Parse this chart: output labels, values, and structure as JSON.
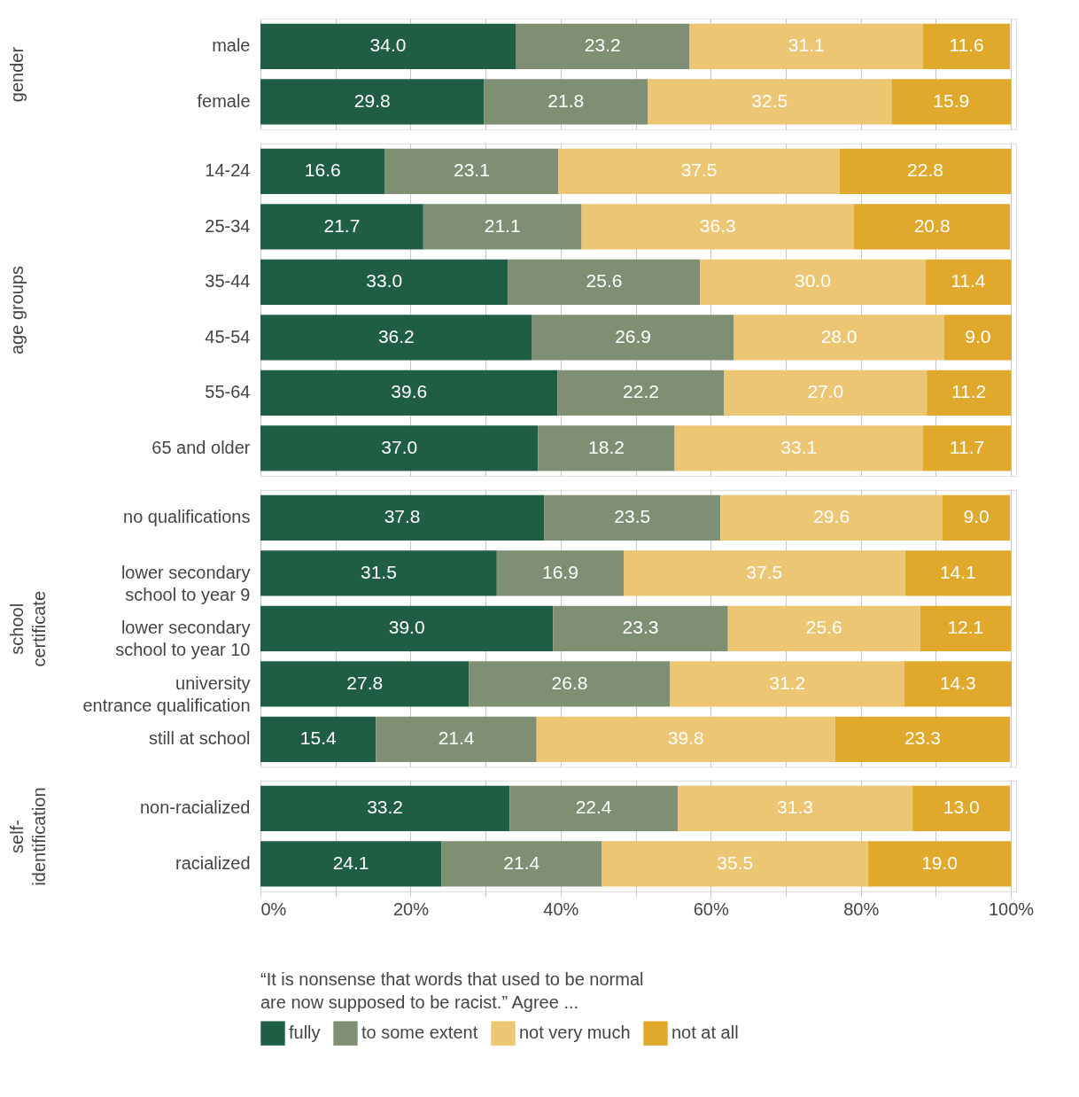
{
  "chart_data": [
    {
      "type": "bar",
      "orientation": "horizontal",
      "stacked": true,
      "ylabel": "gender",
      "categories": [
        "male",
        "female"
      ],
      "series": [
        {
          "color": "#1f5e45",
          "values": [
            34.0,
            29.8
          ],
          "value_labels": [
            "34.0",
            "29.8"
          ]
        },
        {
          "color": "#7f8f74",
          "values": [
            23.2,
            21.8
          ],
          "value_labels": [
            "23.2",
            "21.8"
          ]
        },
        {
          "color": "#ecc672",
          "values": [
            31.1,
            32.5
          ],
          "value_labels": [
            "31.1",
            "32.5"
          ]
        },
        {
          "color": "#e0a92c",
          "values": [
            11.6,
            15.9
          ],
          "value_labels": [
            "11.6",
            "15.9"
          ]
        }
      ],
      "xlim": [
        0,
        100.7
      ],
      "xticks": [
        {
          "value": 0,
          "label": null
        },
        {
          "value": 10,
          "label": null
        },
        {
          "value": 20,
          "label": null
        },
        {
          "value": 30,
          "label": null
        },
        {
          "value": 40,
          "label": null
        },
        {
          "value": 50,
          "label": null
        },
        {
          "value": 60,
          "label": null
        },
        {
          "value": 70,
          "label": null
        },
        {
          "value": 80,
          "label": null
        },
        {
          "value": 90,
          "label": null
        },
        {
          "value": 100,
          "label": null
        }
      ],
      "grid": "x",
      "tick_labels": "y"
    },
    {
      "type": "bar",
      "orientation": "horizontal",
      "stacked": true,
      "ylabel": "age groups",
      "categories": [
        "14-24",
        "25-34",
        "35-44",
        "45-54",
        "55-64",
        "65 and older"
      ],
      "series": [
        {
          "color": "#1f5e45",
          "values": [
            16.6,
            21.7,
            33.0,
            36.2,
            39.6,
            37.0
          ],
          "value_labels": [
            "16.6",
            "21.7",
            "33.0",
            "36.2",
            "39.6",
            "37.0"
          ]
        },
        {
          "color": "#7f8f74",
          "values": [
            23.1,
            21.1,
            25.6,
            26.9,
            22.2,
            18.2
          ],
          "value_labels": [
            "23.1",
            "21.1",
            "25.6",
            "26.9",
            "22.2",
            "18.2"
          ]
        },
        {
          "color": "#ecc672",
          "values": [
            37.5,
            36.3,
            30.0,
            28.0,
            27.0,
            33.1
          ],
          "value_labels": [
            "37.5",
            "36.3",
            "30.0",
            "28.0",
            "27.0",
            "33.1"
          ]
        },
        {
          "color": "#e0a92c",
          "values": [
            22.8,
            20.8,
            11.4,
            9.0,
            11.2,
            11.7
          ],
          "value_labels": [
            "22.8",
            "20.8",
            "11.4",
            "9.0",
            "11.2",
            "11.7"
          ]
        }
      ],
      "xlim": [
        0,
        100.7
      ],
      "xticks": [
        {
          "value": 0,
          "label": null
        },
        {
          "value": 10,
          "label": null
        },
        {
          "value": 20,
          "label": null
        },
        {
          "value": 30,
          "label": null
        },
        {
          "value": 40,
          "label": null
        },
        {
          "value": 50,
          "label": null
        },
        {
          "value": 60,
          "label": null
        },
        {
          "value": 70,
          "label": null
        },
        {
          "value": 80,
          "label": null
        },
        {
          "value": 90,
          "label": null
        },
        {
          "value": 100,
          "label": null
        }
      ],
      "grid": "x",
      "tick_labels": "y"
    },
    {
      "type": "bar",
      "orientation": "horizontal",
      "stacked": true,
      "ylabel": "school certificate",
      "categories": [
        "no qualifications",
        "lower secondary school to year 9",
        "lower secondary school to year 10",
        "university entrance qualification",
        "still at school"
      ],
      "series": [
        {
          "color": "#1f5e45",
          "values": [
            37.8,
            31.5,
            39.0,
            27.8,
            15.4
          ],
          "value_labels": [
            "37.8",
            "31.5",
            "39.0",
            "27.8",
            "15.4"
          ]
        },
        {
          "color": "#7f8f74",
          "values": [
            23.5,
            16.9,
            23.3,
            26.8,
            21.4
          ],
          "value_labels": [
            "23.5",
            "16.9",
            "23.3",
            "26.8",
            "21.4"
          ]
        },
        {
          "color": "#ecc672",
          "values": [
            29.6,
            37.5,
            25.6,
            31.2,
            39.8
          ],
          "value_labels": [
            "29.6",
            "37.5",
            "25.6",
            "31.2",
            "39.8"
          ]
        },
        {
          "color": "#e0a92c",
          "values": [
            9.0,
            14.1,
            12.1,
            14.3,
            23.3
          ],
          "value_labels": [
            "9.0",
            "14.1",
            "12.1",
            "14.3",
            "23.3"
          ]
        }
      ],
      "xlim": [
        0,
        100.7
      ],
      "xticks": [
        {
          "value": 0,
          "label": null
        },
        {
          "value": 10,
          "label": null
        },
        {
          "value": 20,
          "label": null
        },
        {
          "value": 30,
          "label": null
        },
        {
          "value": 40,
          "label": null
        },
        {
          "value": 50,
          "label": null
        },
        {
          "value": 60,
          "label": null
        },
        {
          "value": 70,
          "label": null
        },
        {
          "value": 80,
          "label": null
        },
        {
          "value": 90,
          "label": null
        },
        {
          "value": 100,
          "label": null
        }
      ],
      "grid": "x",
      "tick_labels": "y"
    },
    {
      "type": "bar",
      "orientation": "horizontal",
      "stacked": true,
      "ylabel": "self-identification",
      "categories": [
        "non-racialized",
        "racialized"
      ],
      "series": [
        {
          "name": "fully",
          "color": "#1f5e45",
          "values": [
            33.2,
            24.1
          ],
          "value_labels": [
            "33.2",
            "24.1"
          ]
        },
        {
          "name": "to some extent",
          "color": "#7f8f74",
          "values": [
            22.4,
            21.4
          ],
          "value_labels": [
            "22.4",
            "21.4"
          ]
        },
        {
          "name": "not very much",
          "color": "#ecc672",
          "values": [
            31.3,
            35.5
          ],
          "value_labels": [
            "31.3",
            "35.5"
          ]
        },
        {
          "name": "not at all",
          "color": "#e0a92c",
          "values": [
            13.0,
            19.0
          ],
          "value_labels": [
            "13.0",
            "19.0"
          ]
        }
      ],
      "xlim": [
        0,
        100.7
      ],
      "xticks": [
        {
          "value": 0,
          "label": "0%"
        },
        {
          "value": 10,
          "label": null
        },
        {
          "value": 20,
          "label": "20%"
        },
        {
          "value": 30,
          "label": null
        },
        {
          "value": 40,
          "label": "40%"
        },
        {
          "value": 50,
          "label": null
        },
        {
          "value": 60,
          "label": "60%"
        },
        {
          "value": 70,
          "label": null
        },
        {
          "value": 80,
          "label": "80%"
        },
        {
          "value": 90,
          "label": null
        },
        {
          "value": 100,
          "label": "100%"
        }
      ],
      "grid": "x",
      "legend": "bottom",
      "legend_title": "“It is nonsense that words that used to be normal are now supposed to be racist.” Agree ..."
    }
  ]
}
